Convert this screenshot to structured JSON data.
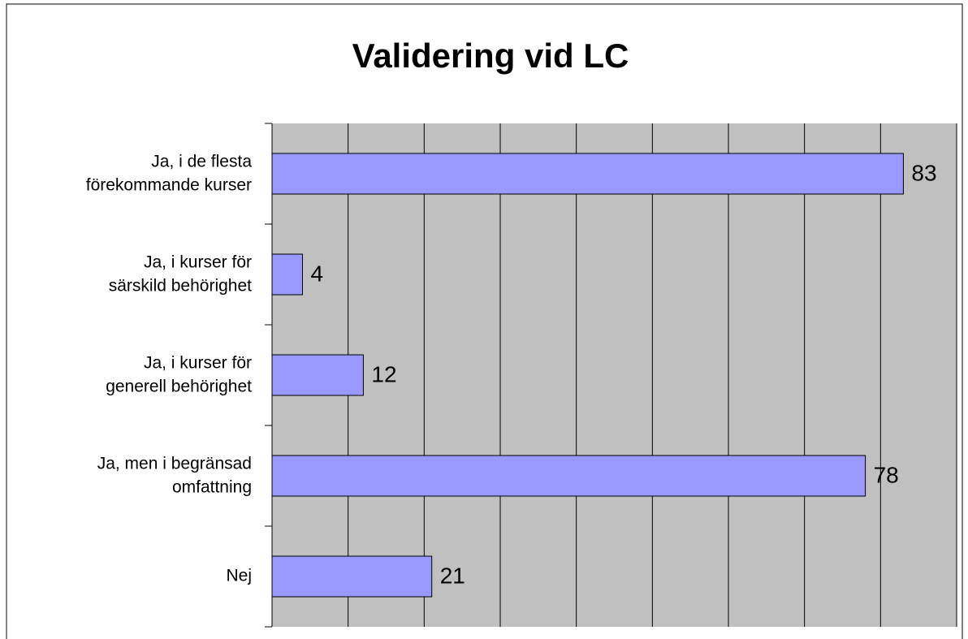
{
  "chart_data": {
    "type": "bar",
    "title": "Validering vid LC",
    "categories": [
      "Ja, i de flesta\nförekommande kurser",
      "Ja, i kurser för\nsärskild behörighet",
      "Ja, i kurser för\ngenerell behörighet",
      "Ja, men i begränsad\nomfattning",
      "Nej"
    ],
    "values": [
      83,
      4,
      12,
      78,
      21
    ],
    "color": "#9999ff",
    "xlim": [
      0,
      90
    ],
    "xticks": [
      0,
      10,
      20,
      30,
      40,
      50,
      60,
      70,
      80,
      90
    ],
    "grid": true
  }
}
